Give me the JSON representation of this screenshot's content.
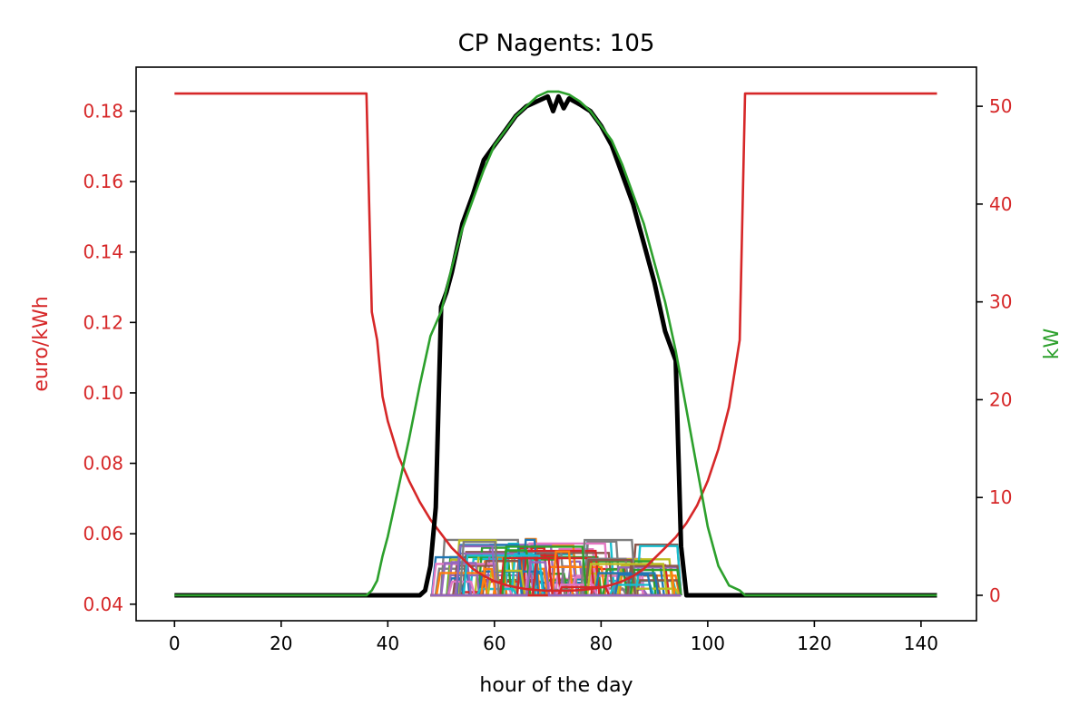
{
  "chart_data": {
    "type": "line",
    "title": "CP Nagents: 105",
    "xlabel": "hour of the day",
    "ylabel_left": "euro/kWh",
    "ylabel_right": "kW",
    "xlim": [
      -7.2,
      150.4
    ],
    "ylim_left": [
      0.0353,
      0.1925
    ],
    "ylim_right": [
      -2.6,
      54.0
    ],
    "x_ticks": [
      0,
      20,
      40,
      60,
      80,
      100,
      120,
      140
    ],
    "x_tick_labels": [
      "0",
      "20",
      "40",
      "60",
      "80",
      "100",
      "120",
      "140"
    ],
    "y_left_ticks": [
      0.04,
      0.06,
      0.08,
      0.1,
      0.12,
      0.14,
      0.16,
      0.18
    ],
    "y_left_tick_labels": [
      "0.04",
      "0.06",
      "0.08",
      "0.10",
      "0.12",
      "0.14",
      "0.16",
      "0.18"
    ],
    "y_right_ticks": [
      0,
      10,
      20,
      30,
      40,
      50
    ],
    "y_right_tick_labels": [
      "0",
      "10",
      "20",
      "30",
      "40",
      "50"
    ],
    "grid": false,
    "colors": {
      "price": "#d62728",
      "generation": "#2ca02c",
      "total_load": "#000000",
      "agent_palette": [
        "#1f77b4",
        "#ff7f0e",
        "#2ca02c",
        "#d62728",
        "#9467bd",
        "#8c564b",
        "#e377c2",
        "#7f7f7f",
        "#bcbd22",
        "#17becf"
      ]
    },
    "series": [
      {
        "key": "price",
        "axis": "left",
        "x": [
          0,
          36,
          37,
          38,
          39,
          40,
          42,
          44,
          46,
          48,
          50,
          52,
          54,
          56,
          58,
          60,
          62,
          64,
          66,
          68,
          70,
          72,
          74,
          76,
          78,
          80,
          82,
          84,
          86,
          88,
          90,
          92,
          94,
          96,
          98,
          100,
          102,
          104,
          106,
          107,
          143
        ],
        "y": [
          0.185,
          0.185,
          0.123,
          0.115,
          0.099,
          0.092,
          0.082,
          0.075,
          0.069,
          0.064,
          0.06,
          0.056,
          0.053,
          0.05,
          0.048,
          0.0465,
          0.0455,
          0.0448,
          0.0443,
          0.044,
          0.0438,
          0.0438,
          0.0438,
          0.044,
          0.0443,
          0.0448,
          0.0455,
          0.0465,
          0.048,
          0.05,
          0.053,
          0.056,
          0.059,
          0.063,
          0.068,
          0.075,
          0.084,
          0.096,
          0.115,
          0.185,
          0.185
        ]
      },
      {
        "key": "generation",
        "axis": "right",
        "x": [
          0,
          36,
          37,
          38,
          39,
          40,
          42,
          44,
          46,
          48,
          50,
          52,
          54,
          56,
          58,
          60,
          62,
          64,
          66,
          68,
          70,
          72,
          74,
          76,
          78,
          80,
          82,
          84,
          86,
          88,
          90,
          92,
          94,
          96,
          98,
          100,
          102,
          104,
          106,
          107,
          143
        ],
        "y": [
          0,
          0,
          0.5,
          1.5,
          4,
          6,
          11,
          16,
          21.5,
          26.5,
          29,
          33.5,
          37.5,
          40.5,
          43.5,
          46,
          47.5,
          49,
          50,
          51,
          51.5,
          51.5,
          51.2,
          50.5,
          49.5,
          48,
          46.5,
          44,
          41,
          38,
          34,
          30,
          25,
          19,
          13,
          7,
          3,
          1,
          0.5,
          0,
          0
        ]
      },
      {
        "key": "total_load",
        "axis": "right",
        "x": [
          0,
          46,
          47,
          48,
          49,
          50,
          51,
          52,
          54,
          56,
          58,
          60,
          62,
          64,
          66,
          68,
          70,
          71,
          72,
          73,
          74,
          76,
          78,
          80,
          82,
          84,
          86,
          88,
          90,
          92,
          94,
          95,
          96,
          143
        ],
        "y": [
          0,
          0,
          0.5,
          3,
          9,
          29.5,
          31,
          33,
          38,
          41,
          44.5,
          46,
          47.5,
          49,
          50,
          50.5,
          51,
          49.5,
          51,
          49.8,
          50.8,
          50.2,
          49.5,
          48,
          46,
          43,
          40,
          36,
          32,
          27,
          24,
          5,
          0,
          0
        ]
      }
    ],
    "agents": {
      "count": 105,
      "x_range": [
        48,
        95
      ],
      "level_range": [
        0.3,
        5.8
      ]
    }
  }
}
